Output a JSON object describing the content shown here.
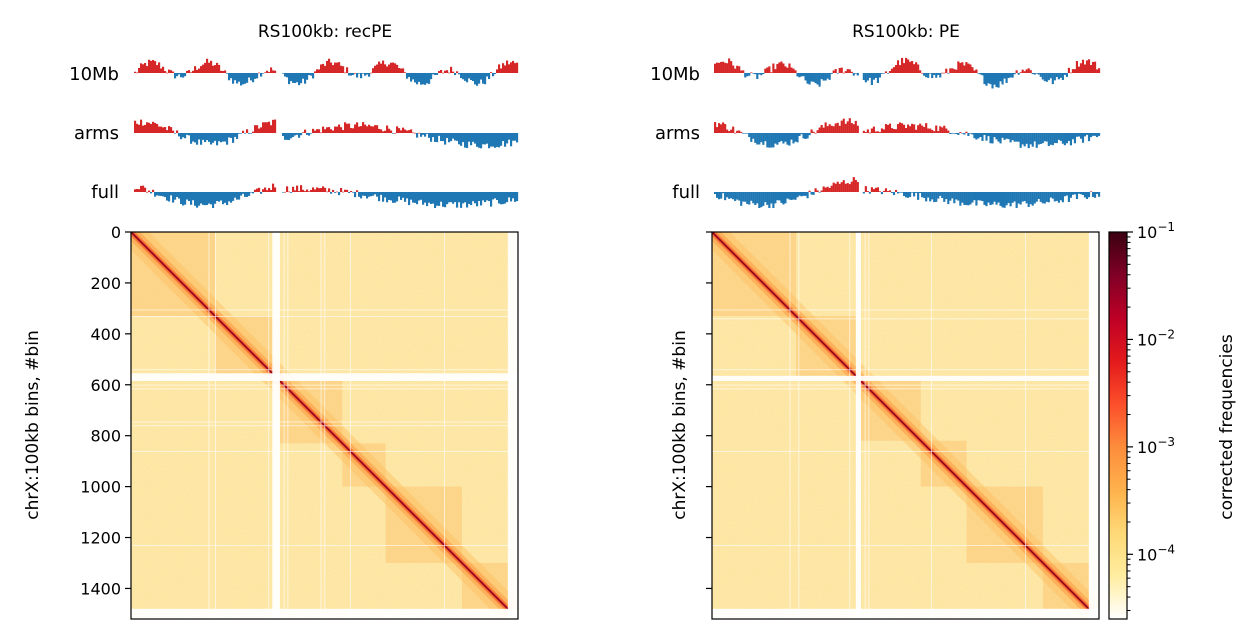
{
  "chart_data": {
    "type": "heatmap",
    "panels": [
      {
        "title": "RS100kb: recPE",
        "ylabel": "chrX:100kb bins, #bin",
        "yticks": [
          0,
          200,
          400,
          600,
          800,
          1000,
          1200,
          1400
        ],
        "ytick_labels": [
          "0",
          "200",
          "400",
          "600",
          "800",
          "1000",
          "1200",
          "1400"
        ],
        "ylim": [
          0,
          1520
        ],
        "matrix_bins": 1520,
        "masked_bins": [
          [
            555,
            585
          ],
          [
            1480,
            1520
          ]
        ],
        "track_labels": [
          "10Mb",
          "arms",
          "full"
        ]
      },
      {
        "title": "RS100kb: PE",
        "ylabel": "chrX:100kb bins, #bin",
        "yticks": [
          0,
          200,
          400,
          600,
          800,
          1000,
          1200,
          1400
        ],
        "ytick_labels": [
          "",
          "",
          "",
          "",
          "",
          "",
          "",
          ""
        ],
        "ylim": [
          0,
          1520
        ],
        "matrix_bins": 1520,
        "masked_bins": [
          [
            565,
            585
          ],
          [
            1480,
            1520
          ]
        ],
        "track_labels": [
          "10Mb",
          "arms",
          "full"
        ]
      }
    ],
    "colorbar": {
      "label": "corrected frequencies",
      "scale": "log",
      "range": [
        2.5e-05,
        0.1
      ],
      "major_ticks": [
        0.0001,
        0.001,
        0.01,
        0.1
      ],
      "major_tick_labels": [
        [
          "10",
          "−4"
        ],
        [
          "10",
          "−3"
        ],
        [
          "10",
          "−2"
        ],
        [
          "10",
          "−1"
        ]
      ],
      "colormap": "YlOrRd (reversed to dark at high values)",
      "stops": [
        "#ffffff",
        "#ffeda0",
        "#fed976",
        "#feb24c",
        "#fd8d3c",
        "#fc4e2a",
        "#e31a1c",
        "#bd0026",
        "#800026",
        "#3a0010"
      ]
    },
    "track_colors": {
      "positive": "#d62728",
      "negative": "#1f77b4"
    },
    "grid": false,
    "legend": "none"
  }
}
